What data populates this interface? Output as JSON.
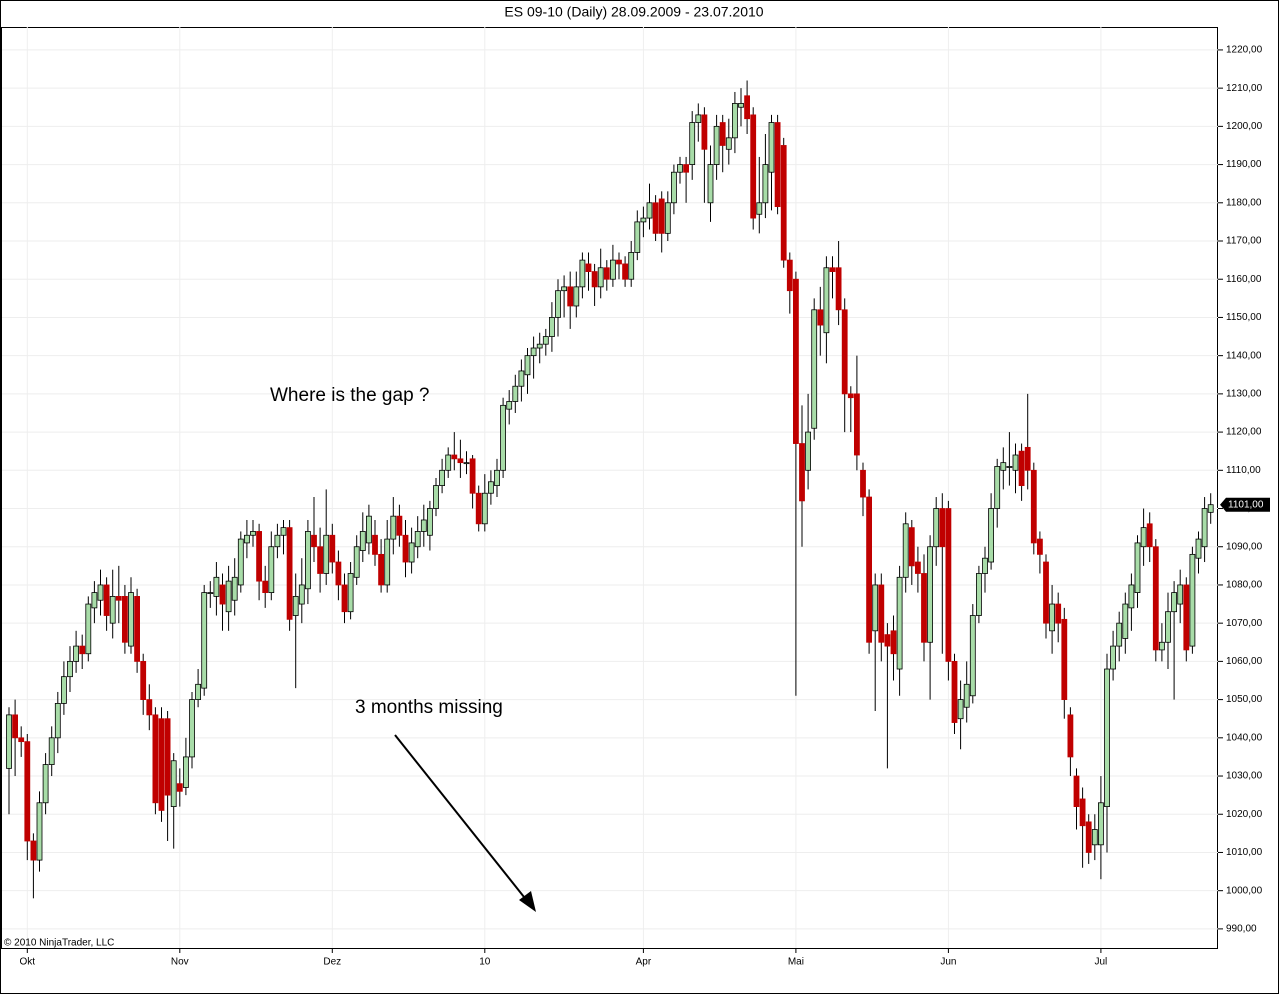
{
  "chart_data": {
    "type": "candlestick",
    "title": "ES 09-10 (Daily)  28.09.2009 - 23.07.2010",
    "annotations": [
      "Where is the gap ?",
      "3 months missing"
    ],
    "copyright": "© 2010 NinjaTrader, LLC",
    "up_color": "#a8dca8",
    "down_color": "#c00000",
    "grid": true,
    "categories": [
      null,
      null,
      null,
      "Okt",
      null,
      null,
      null,
      null,
      null,
      null,
      null,
      null,
      null,
      null,
      null,
      null,
      null,
      null,
      null,
      null,
      null,
      null,
      null,
      null,
      null,
      null,
      null,
      null,
      "Nov",
      null,
      null,
      null,
      null,
      null,
      null,
      null,
      null,
      null,
      null,
      null,
      null,
      null,
      null,
      null,
      null,
      null,
      null,
      null,
      null,
      null,
      null,
      null,
      null,
      "Dez",
      null,
      null,
      null,
      null,
      null,
      null,
      null,
      null,
      null,
      null,
      null,
      null,
      null,
      null,
      null,
      null,
      null,
      null,
      null,
      null,
      null,
      null,
      null,
      null,
      "10",
      null,
      null,
      null,
      null,
      null,
      null,
      null,
      null,
      null,
      null,
      null,
      null,
      null,
      null,
      null,
      null,
      null,
      null,
      null,
      null,
      null,
      null,
      null,
      null,
      null,
      "Apr",
      null,
      null,
      null,
      null,
      null,
      null,
      null,
      null,
      null,
      null,
      null,
      null,
      null,
      null,
      null,
      null,
      null,
      null,
      null,
      null,
      null,
      null,
      null,
      null,
      "Mai",
      null,
      null,
      null,
      null,
      null,
      null,
      null,
      null,
      null,
      null,
      null,
      null,
      null,
      null,
      null,
      null,
      null,
      null,
      null,
      null,
      null,
      null,
      null,
      null,
      "Jun",
      null,
      null,
      null,
      null,
      null,
      null,
      null,
      null,
      null,
      null,
      null,
      null,
      null,
      null,
      null,
      null,
      null,
      null,
      null,
      null,
      null,
      null,
      null,
      null,
      "Jul",
      null,
      null,
      null,
      null,
      null,
      null,
      null,
      null,
      null,
      null,
      null,
      null,
      null,
      null,
      null,
      null,
      null,
      null
    ],
    "open": [
      1032,
      1046,
      1040,
      1039,
      1013,
      1008,
      1023,
      1033,
      1040,
      1049,
      1056,
      1060,
      1064,
      1062,
      1074,
      1076,
      1080,
      1070,
      1077,
      1077,
      1064,
      1077,
      1060,
      1050,
      1046,
      1045,
      1045,
      1022,
      1028,
      1027,
      1035,
      1050,
      1053,
      1078,
      1077,
      1080,
      1073,
      1076,
      1080,
      1091,
      1093,
      1094,
      1081,
      1078,
      1090,
      1093,
      1095,
      1072,
      1075,
      1079,
      1093,
      1090,
      1083,
      1093,
      1086,
      1080,
      1073,
      1082,
      1089,
      1091,
      1093,
      1088,
      1080,
      1092,
      1098,
      1093,
      1086,
      1090,
      1094,
      1093,
      1100,
      1106,
      1110,
      1114,
      1113,
      1112,
      1113,
      1104,
      1096,
      1104,
      1106,
      1110,
      1126,
      1128,
      1132,
      1135,
      1140,
      1142,
      1143,
      1145,
      1150,
      1157,
      1158,
      1153,
      1158,
      1164,
      1162,
      1158,
      1163,
      1160,
      1165,
      1164,
      1160,
      1167,
      1175,
      1176,
      1180,
      1181,
      1172,
      1180,
      1188,
      1190,
      1190,
      1201,
      1203,
      1180,
      1190,
      1201,
      1194,
      1197,
      1205,
      1208,
      1203,
      1177,
      1180,
      1188,
      1201,
      1195,
      1165,
      1160,
      1117,
      1110,
      1121,
      1152,
      1146,
      1163,
      1163,
      1152,
      1130,
      1130,
      1110,
      1103,
      1068,
      1080,
      1067,
      1068,
      1058,
      1082,
      1095,
      1086,
      1083,
      1065,
      1090,
      1100,
      1100,
      1060,
      1045,
      1048,
      1051,
      1072,
      1083,
      1086,
      1100,
      1110,
      1111,
      1110,
      1115,
      1116,
      1110,
      1092,
      1086,
      1068,
      1075,
      1071,
      1046,
      1030,
      1024,
      1018,
      1012,
      1012,
      1022,
      1058,
      1064,
      1066,
      1074,
      1078,
      1090,
      1096,
      1090,
      1063,
      1065,
      1073,
      1075,
      1080,
      1064,
      1087,
      1090,
      1099
    ],
    "high": [
      1048,
      1050,
      1043,
      1041,
      1015,
      1026,
      1036,
      1043,
      1052,
      1060,
      1064,
      1068,
      1067,
      1077,
      1081,
      1084,
      1082,
      1084,
      1085,
      1080,
      1082,
      1079,
      1062,
      1054,
      1048,
      1048,
      1047,
      1036,
      1032,
      1040,
      1052,
      1058,
      1080,
      1081,
      1086,
      1083,
      1085,
      1087,
      1094,
      1097,
      1097,
      1096,
      1085,
      1094,
      1096,
      1097,
      1097,
      1083,
      1087,
      1097,
      1103,
      1095,
      1105,
      1096,
      1089,
      1083,
      1086,
      1093,
      1099,
      1101,
      1097,
      1092,
      1097,
      1103,
      1101,
      1097,
      1095,
      1098,
      1101,
      1102,
      1108,
      1113,
      1116,
      1120,
      1118,
      1115,
      1114,
      1106,
      1109,
      1110,
      1113,
      1129,
      1131,
      1135,
      1139,
      1142,
      1145,
      1146,
      1147,
      1154,
      1160,
      1161,
      1162,
      1162,
      1167,
      1167,
      1164,
      1168,
      1165,
      1169,
      1167,
      1166,
      1170,
      1178,
      1179,
      1185,
      1182,
      1183,
      1183,
      1190,
      1192,
      1192,
      1204,
      1206,
      1205,
      1195,
      1203,
      1203,
      1202,
      1209,
      1210,
      1212,
      1205,
      1192,
      1198,
      1203,
      1203,
      1197,
      1167,
      1162,
      1127,
      1130,
      1155,
      1158,
      1166,
      1166,
      1170,
      1155,
      1132,
      1140,
      1112,
      1105,
      1083,
      1083,
      1070,
      1072,
      1085,
      1099,
      1097,
      1090,
      1088,
      1093,
      1103,
      1104,
      1102,
      1062,
      1055,
      1060,
      1075,
      1085,
      1090,
      1104,
      1113,
      1116,
      1120,
      1117,
      1117,
      1130,
      1112,
      1094,
      1088,
      1080,
      1078,
      1074,
      1048,
      1032,
      1027,
      1020,
      1020,
      1030,
      1062,
      1068,
      1073,
      1078,
      1083,
      1093,
      1100,
      1099,
      1092,
      1070,
      1078,
      1081,
      1084,
      1082,
      1090,
      1094,
      1103,
      1104
    ],
    "low": [
      1020,
      1030,
      1035,
      1008,
      998,
      1005,
      1020,
      1030,
      1036,
      1046,
      1052,
      1057,
      1058,
      1060,
      1070,
      1072,
      1068,
      1066,
      1070,
      1062,
      1062,
      1057,
      1046,
      1042,
      1020,
      1018,
      1013,
      1011,
      1022,
      1025,
      1032,
      1048,
      1051,
      1074,
      1072,
      1068,
      1068,
      1072,
      1078,
      1087,
      1090,
      1076,
      1074,
      1076,
      1087,
      1088,
      1068,
      1053,
      1070,
      1075,
      1086,
      1078,
      1080,
      1083,
      1076,
      1070,
      1071,
      1080,
      1086,
      1088,
      1085,
      1078,
      1078,
      1088,
      1090,
      1082,
      1083,
      1087,
      1090,
      1089,
      1098,
      1104,
      1108,
      1110,
      1108,
      1109,
      1100,
      1094,
      1094,
      1101,
      1103,
      1108,
      1122,
      1125,
      1128,
      1130,
      1134,
      1138,
      1140,
      1141,
      1145,
      1150,
      1147,
      1150,
      1155,
      1157,
      1153,
      1155,
      1157,
      1158,
      1160,
      1158,
      1158,
      1165,
      1171,
      1173,
      1170,
      1167,
      1170,
      1177,
      1185,
      1180,
      1186,
      1196,
      1180,
      1175,
      1186,
      1188,
      1190,
      1193,
      1200,
      1198,
      1173,
      1172,
      1176,
      1178,
      1177,
      1163,
      1151,
      1051,
      1090,
      1105,
      1118,
      1140,
      1138,
      1155,
      1148,
      1120,
      1120,
      1110,
      1098,
      1062,
      1047,
      1060,
      1032,
      1055,
      1051,
      1078,
      1080,
      1078,
      1060,
      1050,
      1085,
      1062,
      1055,
      1041,
      1037,
      1044,
      1049,
      1070,
      1078,
      1084,
      1095,
      1105,
      1106,
      1104,
      1102,
      1105,
      1088,
      1083,
      1066,
      1062,
      1065,
      1045,
      1030,
      1016,
      1006,
      1007,
      1008,
      1003,
      1010,
      1055,
      1060,
      1062,
      1068,
      1074,
      1085,
      1086,
      1060,
      1060,
      1058,
      1050,
      1070,
      1060,
      1062,
      1083,
      1086,
      1096
    ],
    "close": [
      1046,
      1040,
      1039,
      1013,
      1008,
      1023,
      1033,
      1040,
      1049,
      1056,
      1060,
      1064,
      1062,
      1075,
      1078,
      1080,
      1072,
      1077,
      1076,
      1065,
      1078,
      1060,
      1050,
      1046,
      1023,
      1021,
      1025,
      1034,
      1026,
      1035,
      1050,
      1054,
      1078,
      1078,
      1082,
      1075,
      1081,
      1082,
      1092,
      1093,
      1094,
      1081,
      1078,
      1090,
      1093,
      1095,
      1071,
      1077,
      1080,
      1094,
      1090,
      1083,
      1093,
      1086,
      1080,
      1073,
      1083,
      1090,
      1094,
      1098,
      1088,
      1080,
      1092,
      1098,
      1093,
      1086,
      1091,
      1094,
      1097,
      1100,
      1106,
      1110,
      1114,
      1113,
      1112,
      1112,
      1104,
      1096,
      1104,
      1107,
      1110,
      1127,
      1128,
      1132,
      1136,
      1140,
      1142,
      1143,
      1145,
      1150,
      1157,
      1158,
      1153,
      1158,
      1165,
      1162,
      1158,
      1163,
      1160,
      1165,
      1164,
      1160,
      1167,
      1175,
      1176,
      1180,
      1172,
      1172,
      1180,
      1188,
      1190,
      1188,
      1201,
      1203,
      1194,
      1190,
      1200,
      1195,
      1197,
      1206,
      1206,
      1202,
      1176,
      1180,
      1190,
      1201,
      1179,
      1165,
      1157,
      1117,
      1102,
      1120,
      1152,
      1148,
      1163,
      1162,
      1152,
      1130,
      1129,
      1114,
      1103,
      1065,
      1080,
      1065,
      1064,
      1062,
      1082,
      1096,
      1085,
      1083,
      1065,
      1090,
      1100,
      1090,
      1060,
      1044,
      1050,
      1054,
      1072,
      1083,
      1087,
      1100,
      1111,
      1112,
      1111,
      1114,
      1106,
      1110,
      1091,
      1088,
      1070,
      1075,
      1070,
      1050,
      1035,
      1022,
      1017,
      1010,
      1016,
      1023,
      1058,
      1064,
      1070,
      1075,
      1080,
      1091,
      1095,
      1090,
      1063,
      1065,
      1073,
      1078,
      1080,
      1063,
      1088,
      1092,
      1100,
      1101
    ],
    "ylim": [
      985,
      1226
    ],
    "yticks": [
      {
        "value": 990,
        "label": "990,00"
      },
      {
        "value": 1000,
        "label": "1000,00"
      },
      {
        "value": 1010,
        "label": "1010,00"
      },
      {
        "value": 1020,
        "label": "1020,00"
      },
      {
        "value": 1030,
        "label": "1030,00"
      },
      {
        "value": 1040,
        "label": "1040,00"
      },
      {
        "value": 1050,
        "label": "1050,00"
      },
      {
        "value": 1060,
        "label": "1060,00"
      },
      {
        "value": 1070,
        "label": "1070,00"
      },
      {
        "value": 1080,
        "label": "1080,00"
      },
      {
        "value": 1090,
        "label": "1090,00"
      },
      {
        "value": 1100,
        "label": "1100,00"
      },
      {
        "value": 1110,
        "label": "1110,00"
      },
      {
        "value": 1120,
        "label": "1120,00"
      },
      {
        "value": 1130,
        "label": "1130,00"
      },
      {
        "value": 1140,
        "label": "1140,00"
      },
      {
        "value": 1150,
        "label": "1150,00"
      },
      {
        "value": 1160,
        "label": "1160,00"
      },
      {
        "value": 1170,
        "label": "1170,00"
      },
      {
        "value": 1180,
        "label": "1180,00"
      },
      {
        "value": 1190,
        "label": "1190,00"
      },
      {
        "value": 1200,
        "label": "1200,00"
      },
      {
        "value": 1210,
        "label": "1210,00"
      },
      {
        "value": 1220,
        "label": "1220,00"
      }
    ],
    "last_price": {
      "value": 1101,
      "label": "1101,00"
    }
  }
}
